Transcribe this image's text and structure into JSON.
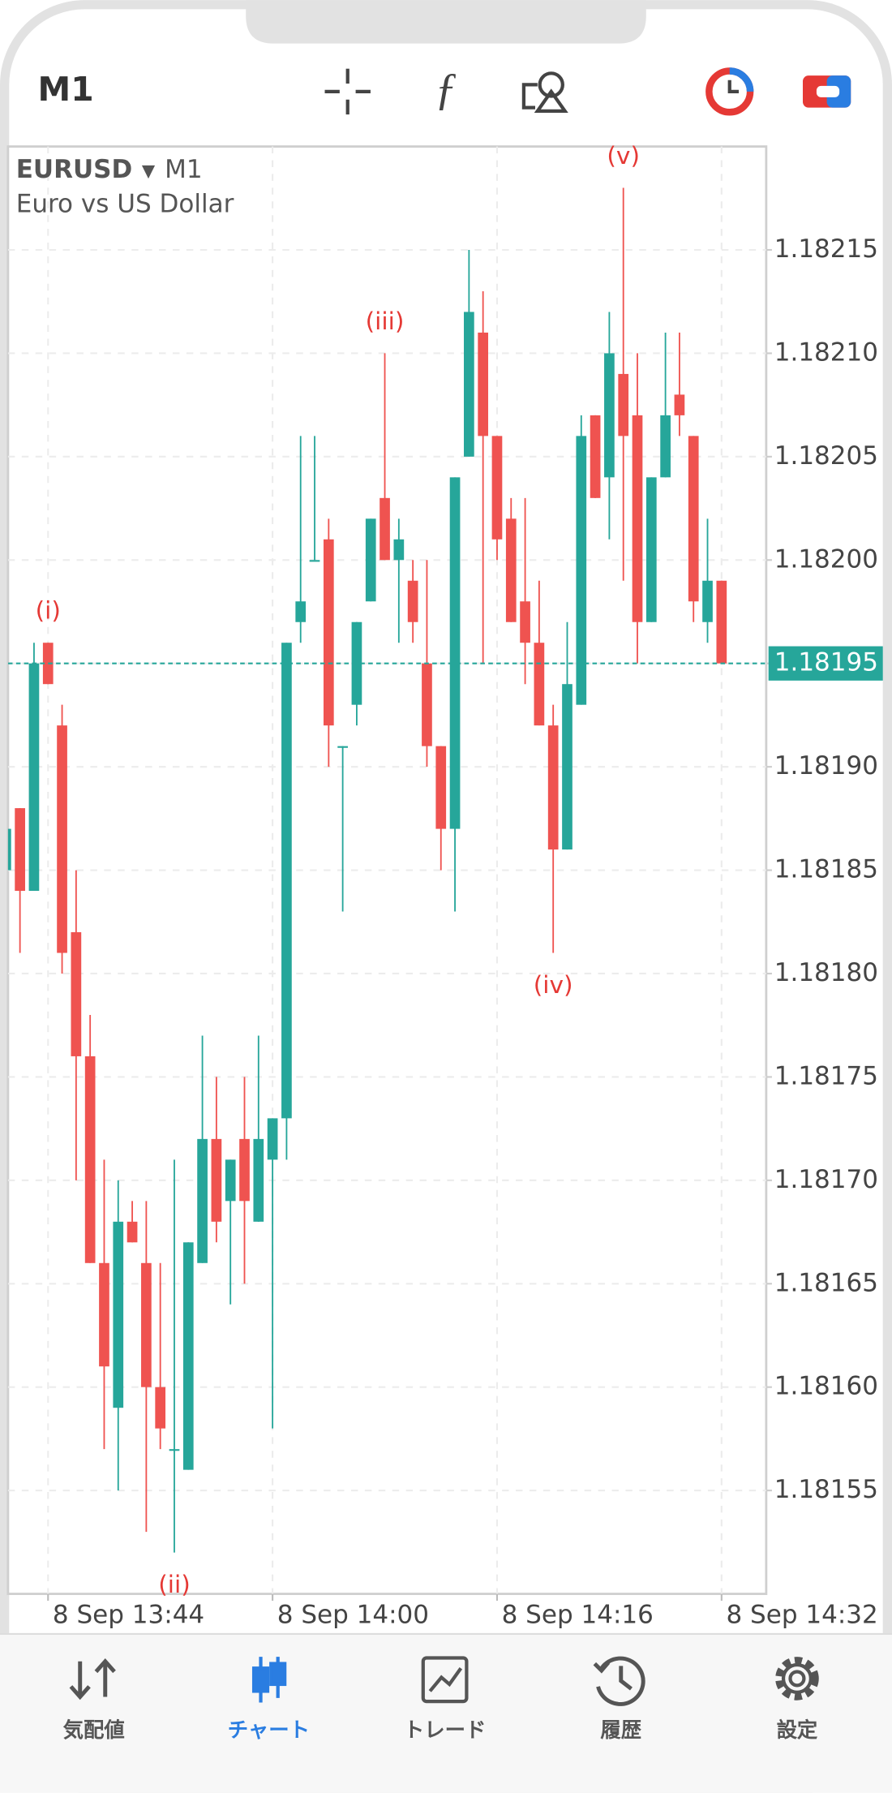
{
  "header": {
    "timeframe": "M1"
  },
  "chart_data": {
    "type": "candlestick",
    "symbol": "EURUSD",
    "timeframe": "M1",
    "description": "Euro vs US Dollar",
    "categories": [
      null,
      null,
      null,
      "8 Sep 13:44",
      null,
      null,
      null,
      null,
      null,
      null,
      null,
      null,
      null,
      null,
      null,
      null,
      null,
      null,
      null,
      "8 Sep 14:00",
      null,
      null,
      null,
      null,
      null,
      null,
      null,
      null,
      null,
      null,
      null,
      null,
      null,
      null,
      null,
      "8 Sep 14:16",
      null,
      null,
      null,
      null,
      null,
      null,
      null,
      null,
      null,
      null,
      null,
      null,
      null,
      null,
      null,
      "8 Sep 14:32"
    ],
    "open": [
      1.18185,
      1.18188,
      1.18184,
      1.18196,
      1.18192,
      1.18182,
      1.18176,
      1.18166,
      1.18159,
      1.18168,
      1.18166,
      1.1816,
      1.18157,
      1.18156,
      1.18166,
      1.18172,
      1.18169,
      1.18172,
      1.18168,
      1.18171,
      1.18173,
      1.18197,
      1.182,
      1.18201,
      1.18191,
      1.18193,
      1.18198,
      1.18203,
      1.182,
      1.18199,
      1.18195,
      1.18191,
      1.18187,
      1.18205,
      1.18211,
      1.18206,
      1.18202,
      1.18198,
      1.18196,
      1.18192,
      1.18186,
      1.18193,
      1.18207,
      1.18204,
      1.18209,
      1.18207,
      1.18197,
      1.18204,
      1.18208,
      1.18206,
      1.18197,
      1.18199
    ],
    "high": [
      1.18187,
      1.18188,
      1.18196,
      1.18196,
      1.18193,
      1.18185,
      1.18178,
      1.18171,
      1.1817,
      1.18169,
      1.18169,
      1.18166,
      1.18171,
      1.18167,
      1.18177,
      1.18175,
      1.18171,
      1.18175,
      1.18177,
      1.18173,
      1.18196,
      1.18206,
      1.18206,
      1.18202,
      1.18191,
      1.18197,
      1.18202,
      1.1821,
      1.18202,
      1.182,
      1.182,
      1.18191,
      1.18204,
      1.18215,
      1.18213,
      1.18206,
      1.18203,
      1.18203,
      1.18199,
      1.18193,
      1.18197,
      1.18207,
      1.18207,
      1.18212,
      1.18218,
      1.1821,
      1.18204,
      1.18211,
      1.18211,
      1.18206,
      1.18202,
      1.18199
    ],
    "low": [
      1.18185,
      1.18181,
      1.18184,
      1.18194,
      1.1818,
      1.1817,
      1.18166,
      1.18157,
      1.18155,
      1.18167,
      1.18153,
      1.18157,
      1.18152,
      1.18156,
      1.18166,
      1.18167,
      1.18164,
      1.18165,
      1.18168,
      1.18158,
      1.18171,
      1.18196,
      1.182,
      1.1819,
      1.18183,
      1.18192,
      1.18198,
      1.182,
      1.18196,
      1.18196,
      1.1819,
      1.18185,
      1.18183,
      1.18205,
      1.18195,
      1.182,
      1.18197,
      1.18194,
      1.18192,
      1.18181,
      1.18186,
      1.18193,
      1.18203,
      1.18201,
      1.18199,
      1.18195,
      1.18197,
      1.18204,
      1.18206,
      1.18197,
      1.18196,
      1.18195
    ],
    "close": [
      1.18187,
      1.18184,
      1.18195,
      1.18194,
      1.18181,
      1.18176,
      1.18166,
      1.18161,
      1.18168,
      1.18167,
      1.1816,
      1.18158,
      1.18157,
      1.18167,
      1.18172,
      1.18168,
      1.18171,
      1.18169,
      1.18172,
      1.18173,
      1.18196,
      1.18198,
      1.182,
      1.18192,
      1.18191,
      1.18197,
      1.18202,
      1.182,
      1.18201,
      1.18197,
      1.18191,
      1.18187,
      1.18204,
      1.18212,
      1.18206,
      1.18201,
      1.18197,
      1.18196,
      1.18192,
      1.18186,
      1.18194,
      1.18206,
      1.18203,
      1.1821,
      1.18206,
      1.18197,
      1.18204,
      1.18207,
      1.18207,
      1.18198,
      1.18199,
      1.18195
    ],
    "up_color": "#26a69a",
    "down_color": "#ef5350",
    "ylim": [
      1.1815,
      1.1822
    ],
    "yticks": [
      1.18155,
      {
        "value": 1.1816,
        "label": "1.18160"
      },
      1.18165,
      {
        "value": 1.1817,
        "label": "1.18170"
      },
      1.18175,
      {
        "value": 1.1818,
        "label": "1.18180"
      },
      1.18185,
      {
        "value": 1.1819,
        "label": "1.18190"
      },
      1.18195,
      {
        "value": 1.182,
        "label": "1.18200"
      },
      1.18205,
      {
        "value": 1.1821,
        "label": "1.18210"
      },
      1.18215
    ],
    "grid": true,
    "current_price": 1.18195,
    "annotations": [
      "(i)",
      "(ii)",
      "(iii)",
      "(iv)",
      "(v)"
    ]
  },
  "nav": {
    "items": [
      "気配値",
      "チャート",
      "トレード",
      "履歴",
      "設定"
    ],
    "active": 1
  }
}
